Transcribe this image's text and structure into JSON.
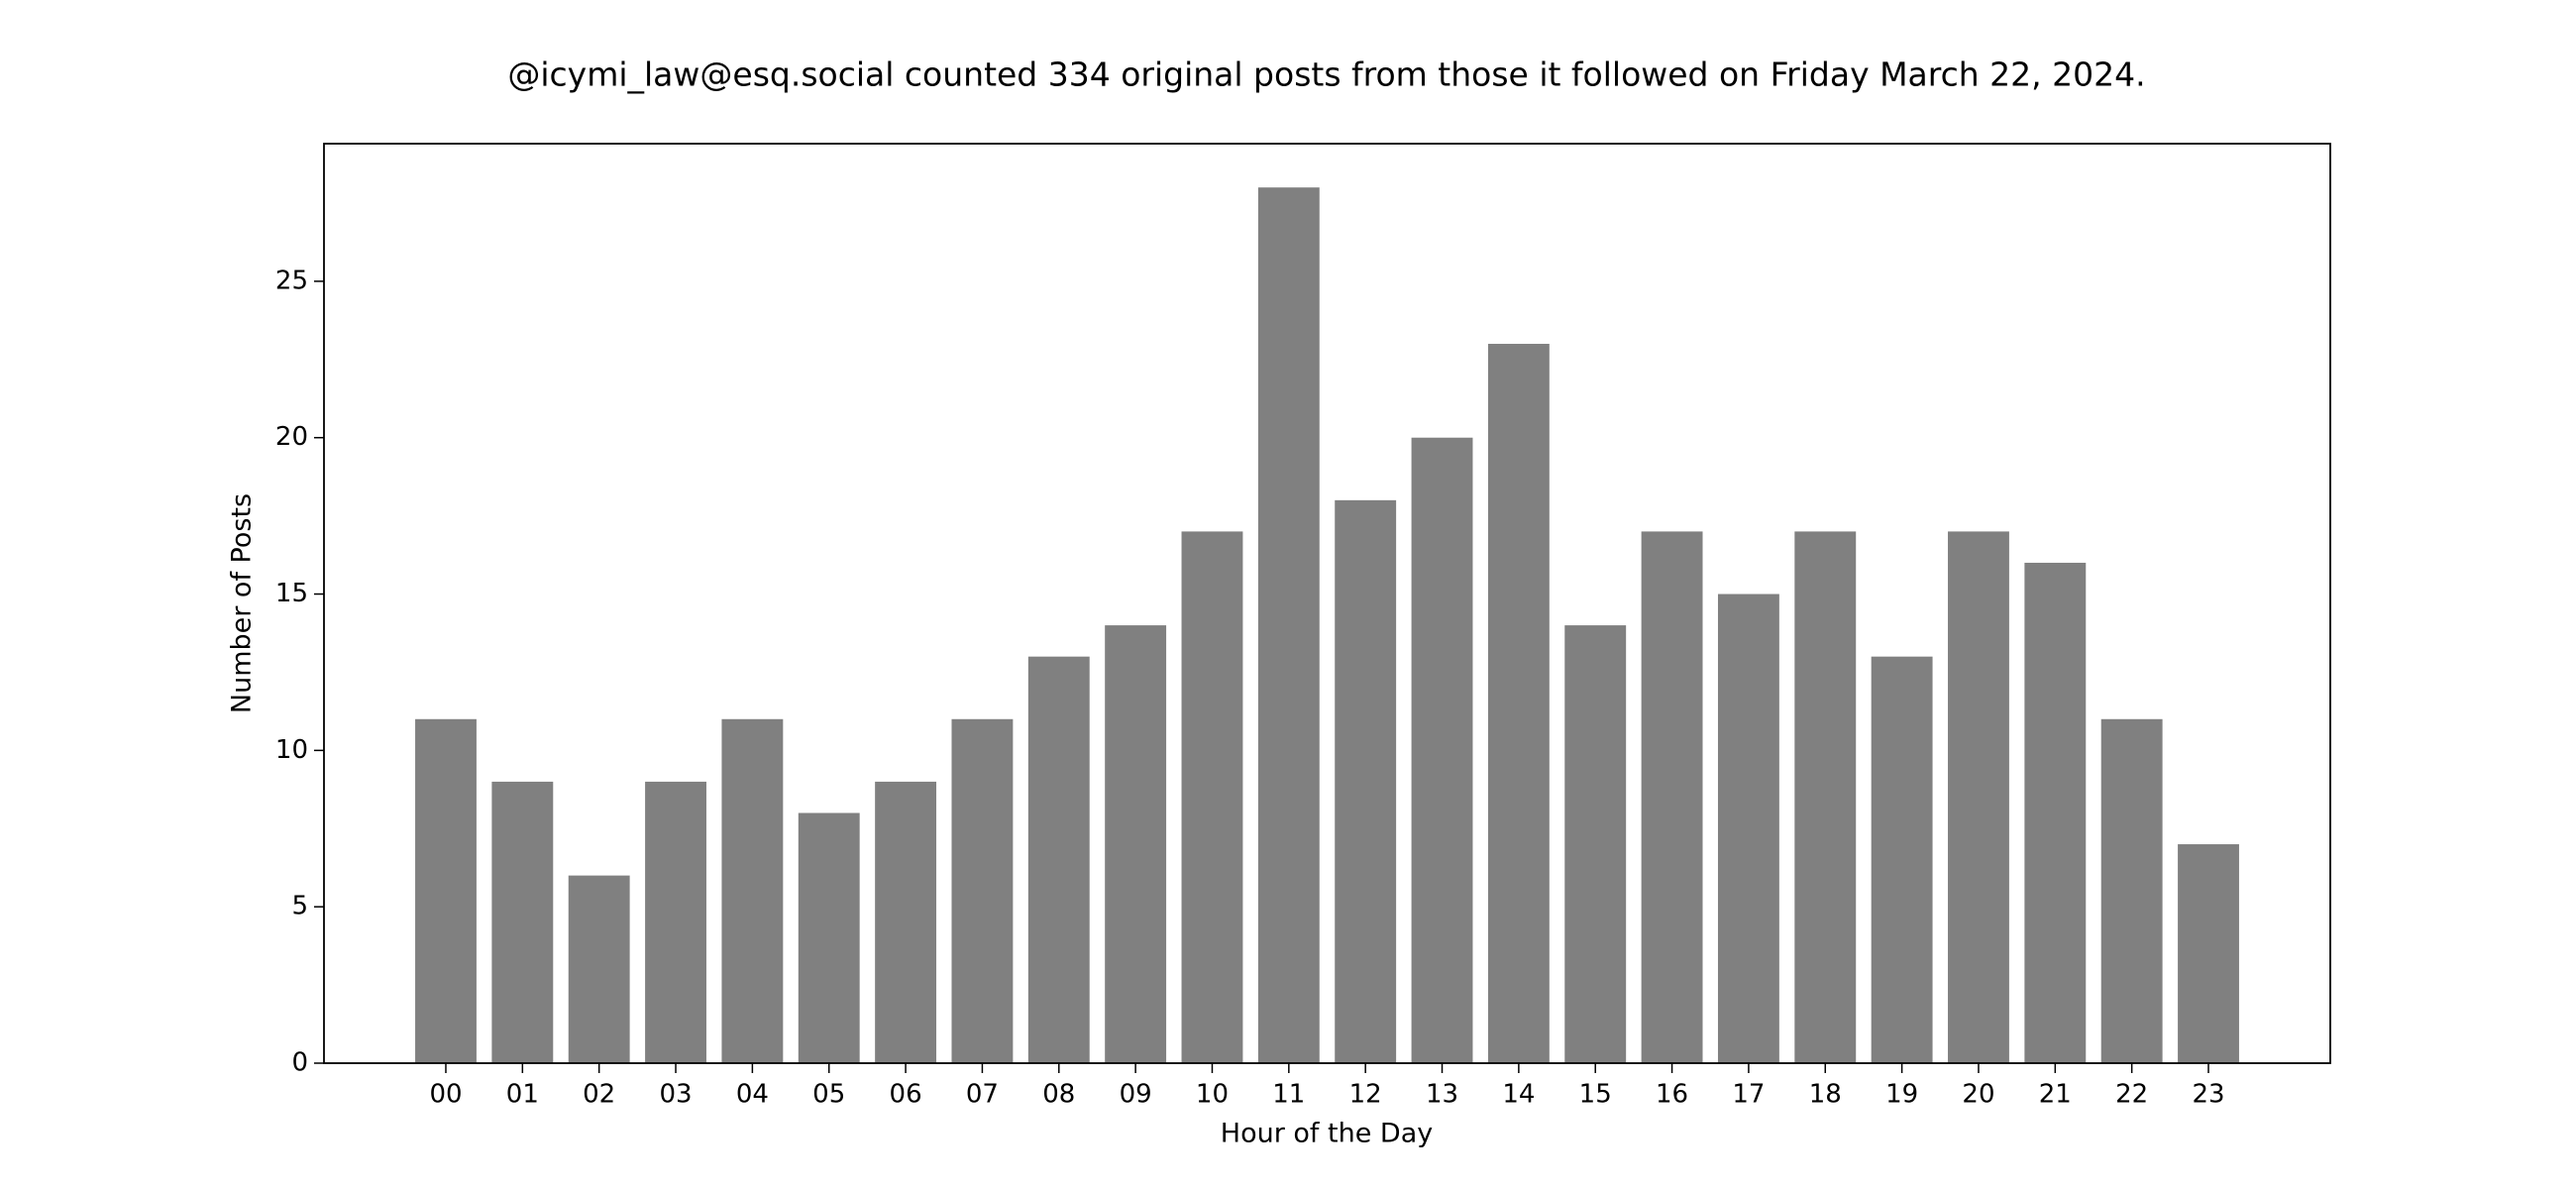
{
  "chart_data": {
    "type": "bar",
    "title": "@icymi_law@esq.social counted 334 original posts from those it followed on Friday March 22, 2024.",
    "x_label": "Hour of the Day",
    "y_label": "Number of Posts",
    "categories": [
      "00",
      "01",
      "02",
      "03",
      "04",
      "05",
      "06",
      "07",
      "08",
      "09",
      "10",
      "11",
      "12",
      "13",
      "14",
      "15",
      "16",
      "17",
      "18",
      "19",
      "20",
      "21",
      "22",
      "23"
    ],
    "values": [
      11,
      9,
      6,
      9,
      11,
      8,
      9,
      11,
      13,
      14,
      17,
      28,
      18,
      20,
      23,
      14,
      17,
      15,
      17,
      13,
      17,
      16,
      11,
      7
    ],
    "color": "#808080",
    "ylim": [
      0,
      29.4
    ],
    "yticks": [
      0,
      5,
      10,
      15,
      20,
      25
    ],
    "grid": false
  }
}
